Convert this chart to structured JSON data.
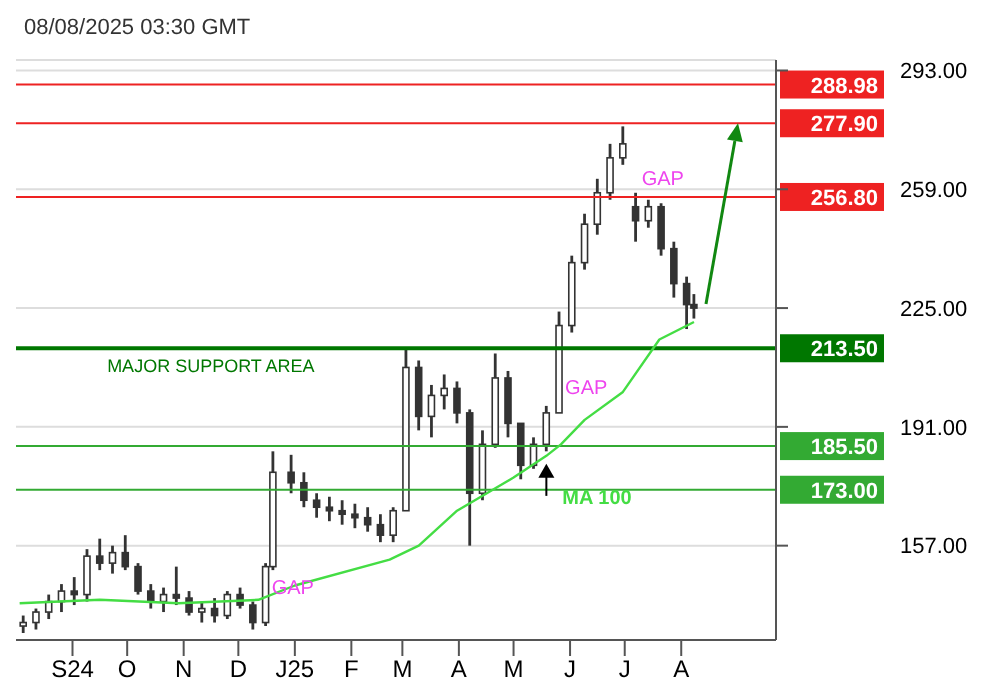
{
  "chart_data": {
    "type": "candlestick",
    "title": "08/08/2025 03:30 GMT",
    "color": "#333333",
    "x": [
      "2024-08-05",
      "2024-08-12",
      "2024-08-19",
      "2024-08-26",
      "2024-09-02",
      "2024-09-09",
      "2024-09-16",
      "2024-09-23",
      "2024-09-30",
      "2024-10-07",
      "2024-10-14",
      "2024-10-21",
      "2024-10-28",
      "2024-11-04",
      "2024-11-11",
      "2024-11-18",
      "2024-11-25",
      "2024-12-02",
      "2024-12-09",
      "2024-12-16",
      "2024-12-20",
      "2024-12-30",
      "2025-01-06",
      "2025-01-13",
      "2025-01-20",
      "2025-01-27",
      "2025-02-03",
      "2025-02-10",
      "2025-02-17",
      "2025-02-24",
      "2025-03-03",
      "2025-03-10",
      "2025-03-17",
      "2025-03-24",
      "2025-03-31",
      "2025-04-07",
      "2025-04-14",
      "2025-04-21",
      "2025-04-28",
      "2025-05-05",
      "2025-05-12",
      "2025-05-19",
      "2025-05-26",
      "2025-06-02",
      "2025-06-09",
      "2025-06-16",
      "2025-06-23",
      "2025-06-30",
      "2025-07-07",
      "2025-07-14",
      "2025-07-21",
      "2025-07-28",
      "2025-08-04",
      "2025-08-08"
    ],
    "ohlc": [
      [
        134,
        137,
        132,
        135
      ],
      [
        135,
        139,
        133,
        138
      ],
      [
        138,
        143,
        136,
        141
      ],
      [
        141,
        146,
        138,
        144
      ],
      [
        144,
        148,
        140,
        143
      ],
      [
        143,
        156,
        141,
        154
      ],
      [
        154,
        159,
        150,
        152
      ],
      [
        152,
        157,
        149,
        155
      ],
      [
        155,
        160,
        150,
        151
      ],
      [
        151,
        152,
        143,
        144
      ],
      [
        144,
        146,
        139,
        141
      ],
      [
        141,
        145,
        138,
        143
      ],
      [
        143,
        151,
        140,
        142
      ],
      [
        142,
        144,
        137,
        138
      ],
      [
        138,
        141,
        135,
        139
      ],
      [
        139,
        142,
        135,
        137
      ],
      [
        137,
        144,
        136,
        143
      ],
      [
        143,
        145,
        139,
        140
      ],
      [
        140,
        141,
        133,
        135
      ],
      [
        135,
        152,
        134,
        151
      ],
      [
        151,
        184,
        150,
        178
      ],
      [
        178,
        183,
        172,
        175
      ],
      [
        175,
        178,
        168,
        170
      ],
      [
        170,
        172,
        165,
        168
      ],
      [
        168,
        171,
        164,
        167
      ],
      [
        167,
        170,
        163,
        166
      ],
      [
        166,
        169,
        162,
        165
      ],
      [
        165,
        168,
        161,
        163
      ],
      [
        163,
        166,
        158,
        160
      ],
      [
        160,
        168,
        158,
        167
      ],
      [
        167,
        213,
        167,
        208
      ],
      [
        208,
        210,
        190,
        194
      ],
      [
        194,
        203,
        188,
        200
      ],
      [
        200,
        206,
        196,
        202
      ],
      [
        202,
        204,
        192,
        195
      ],
      [
        195,
        196,
        157,
        172
      ],
      [
        172,
        190,
        170,
        186
      ],
      [
        186,
        212,
        185,
        205
      ],
      [
        205,
        207,
        188,
        192
      ],
      [
        192,
        192,
        176,
        180
      ],
      [
        180,
        188,
        179,
        186
      ],
      [
        186,
        197,
        184,
        195
      ],
      [
        195,
        224,
        195,
        220
      ],
      [
        220,
        240,
        218,
        238
      ],
      [
        238,
        252,
        236,
        249
      ],
      [
        249,
        262,
        246,
        258
      ],
      [
        258,
        272,
        256,
        268
      ],
      [
        268,
        277,
        266,
        272
      ],
      [
        254,
        258,
        244,
        250
      ],
      [
        250,
        256,
        248,
        254
      ],
      [
        254,
        255,
        240,
        242
      ],
      [
        242,
        244,
        228,
        232
      ],
      [
        232,
        234,
        219,
        226
      ],
      [
        226,
        229,
        222,
        225
      ]
    ],
    "series": [
      {
        "name": "MA 100",
        "type": "line",
        "color": "#44dd44",
        "x": [
          "2024-08-03",
          "2024-09-16",
          "2024-10-29",
          "2024-12-12",
          "2025-01-01",
          "2025-02-22",
          "2025-03-10",
          "2025-03-31",
          "2025-05-01",
          "2025-05-19",
          "2025-05-27",
          "2025-06-09",
          "2025-06-30",
          "2025-07-20",
          "2025-08-08"
        ],
        "values": [
          140.5,
          141.5,
          140.5,
          141.5,
          145.6,
          153,
          157,
          167,
          176.5,
          182.7,
          186,
          193,
          201,
          216,
          221
        ]
      }
    ],
    "xlim": [
      "2024-08-01",
      "2025-09-22"
    ],
    "xticks": [
      {
        "value": "2024-09-01",
        "label": "S24"
      },
      {
        "value": "2024-10-01",
        "label": "O"
      },
      {
        "value": "2024-11-01",
        "label": "N"
      },
      {
        "value": "2024-12-01",
        "label": "D"
      },
      {
        "value": "2025-01-01",
        "label": "J25"
      },
      {
        "value": "2025-02-01",
        "label": "F"
      },
      {
        "value": "2025-03-01",
        "label": "M"
      },
      {
        "value": "2025-04-01",
        "label": "A"
      },
      {
        "value": "2025-05-01",
        "label": "M"
      },
      {
        "value": "2025-06-01",
        "label": "J"
      },
      {
        "value": "2025-07-01",
        "label": "J"
      },
      {
        "value": "2025-08-01",
        "label": "A"
      }
    ],
    "ylim": [
      130,
      296
    ],
    "yticks": [
      {
        "value": 157,
        "label": "157.00"
      },
      {
        "value": 191,
        "label": "191.00"
      },
      {
        "value": 225,
        "label": "225.00"
      },
      {
        "value": 259,
        "label": "259.00"
      },
      {
        "value": 293,
        "label": "293.00"
      }
    ],
    "grid": "y",
    "ref_lines": [
      {
        "axis": "y",
        "value": 288.98,
        "color": "#ee2222",
        "label": "288.98"
      },
      {
        "axis": "y",
        "value": 277.9,
        "color": "#ee2222",
        "label": "277.90"
      },
      {
        "axis": "y",
        "value": 256.8,
        "color": "#ee2222",
        "label": "256.80"
      },
      {
        "axis": "y",
        "value": 213.5,
        "color": "#007700",
        "label": "213.50"
      },
      {
        "axis": "y",
        "value": 185.5,
        "color": "#33aa33",
        "label": "185.50"
      },
      {
        "axis": "y",
        "value": 173,
        "color": "#33aa33",
        "label": "173.00"
      }
    ],
    "annotations": [
      {
        "text": "MAJOR SUPPORT AREA",
        "x": "2024-09-20",
        "y": 213.5
      },
      {
        "text": "GAP",
        "x": "2024-12-16",
        "y": 141
      },
      {
        "text": "GAP",
        "x": "2025-05-26",
        "y": 198
      },
      {
        "text": "GAP",
        "x": "2025-07-07",
        "y": 258
      }
    ]
  }
}
